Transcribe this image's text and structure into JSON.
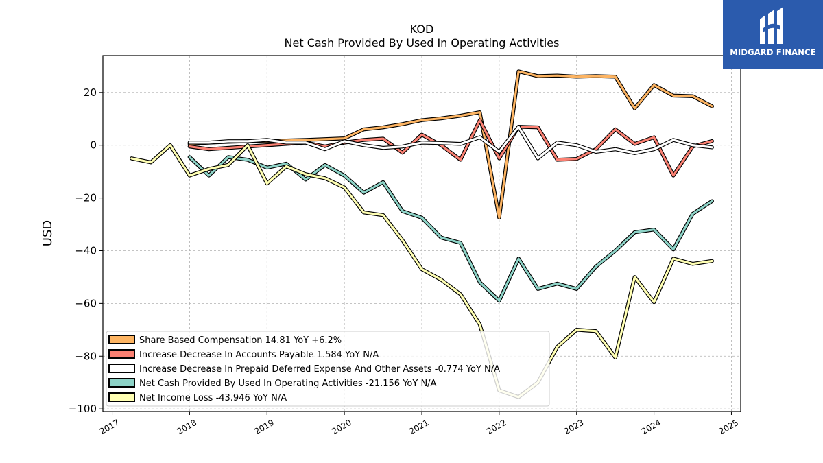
{
  "logo": {
    "text": "MIDGARD FINANCE",
    "icon": "midgard-m-logo-icon"
  },
  "chart_data": {
    "type": "line",
    "title": "KOD",
    "subtitle": "Net Cash Provided By Used In Operating Activities",
    "ylabel": "USD",
    "xlabel": "",
    "xlim": [
      2016.88,
      2025.12
    ],
    "ylim": [
      -101,
      34
    ],
    "yticks": [
      20,
      0,
      -20,
      -40,
      -60,
      -80,
      -100
    ],
    "ytick_labels": [
      "20",
      "0",
      "−20",
      "−40",
      "−60",
      "−80",
      "−100"
    ],
    "xticks": [
      2017,
      2018,
      2019,
      2020,
      2021,
      2022,
      2023,
      2024,
      2025
    ],
    "xtick_labels": [
      "2017",
      "2018",
      "2019",
      "2020",
      "2021",
      "2022",
      "2023",
      "2024",
      "2025"
    ],
    "grid": true,
    "legend_position": "lower-left",
    "series": [
      {
        "name": "Share Based Compensation",
        "legend": "Share Based Compensation  14.81 YoY +6.2%",
        "color": "#fdb462",
        "x": [
          2018.0,
          2018.25,
          2018.5,
          2018.75,
          2019.0,
          2019.25,
          2019.5,
          2019.75,
          2020.0,
          2020.25,
          2020.5,
          2020.75,
          2021.0,
          2021.25,
          2021.5,
          2021.75,
          2022.0,
          2022.25,
          2022.5,
          2022.75,
          2023.0,
          2023.25,
          2023.5,
          2023.75,
          2024.0,
          2024.25,
          2024.5,
          2024.75
        ],
        "values": [
          0.5,
          1.0,
          1.3,
          1.5,
          1.6,
          1.8,
          2.0,
          2.3,
          2.6,
          6.0,
          6.8,
          8.0,
          9.5,
          10.2,
          11.2,
          12.5,
          -27.5,
          28.0,
          26.2,
          26.4,
          26.0,
          26.2,
          26.0,
          14.0,
          22.8,
          18.8,
          18.6,
          14.8
        ]
      },
      {
        "name": "Increase Decrease In Accounts Payable",
        "legend": "Increase Decrease In Accounts Payable  1.584 YoY N/A",
        "color": "#fb8072",
        "x": [
          2018.0,
          2018.25,
          2018.5,
          2018.75,
          2019.0,
          2019.25,
          2019.5,
          2019.75,
          2020.0,
          2020.25,
          2020.5,
          2020.75,
          2021.0,
          2021.25,
          2021.5,
          2021.75,
          2022.0,
          2022.25,
          2022.5,
          2022.75,
          2023.0,
          2023.25,
          2023.5,
          2023.75,
          2024.0,
          2024.25,
          2024.5,
          2024.75
        ],
        "values": [
          -0.5,
          -1.5,
          -1.0,
          -0.5,
          0.0,
          0.5,
          1.0,
          -0.5,
          1.0,
          2.0,
          2.5,
          -2.8,
          4.0,
          0.0,
          -5.5,
          9.5,
          -5.0,
          7.0,
          6.8,
          -5.5,
          -5.2,
          -1.5,
          6.0,
          0.5,
          3.0,
          -11.5,
          -0.5,
          1.6
        ]
      },
      {
        "name": "Increase Decrease In Prepaid Deferred Expense And Other Assets",
        "legend": "Increase Decrease In Prepaid Deferred Expense And Other Assets  -0.774 YoY N/A",
        "color": "#ffffff",
        "x": [
          2018.0,
          2018.25,
          2018.5,
          2018.75,
          2019.0,
          2019.25,
          2019.5,
          2019.75,
          2020.0,
          2020.25,
          2020.5,
          2020.75,
          2021.0,
          2021.25,
          2021.5,
          2021.75,
          2022.0,
          2022.25,
          2022.5,
          2022.75,
          2023.0,
          2023.25,
          2023.5,
          2023.75,
          2024.0,
          2024.25,
          2024.5,
          2024.75
        ],
        "values": [
          1.0,
          1.0,
          1.5,
          1.5,
          2.0,
          1.0,
          1.0,
          -1.5,
          1.5,
          0.0,
          -1.0,
          -0.5,
          1.0,
          0.8,
          0.5,
          3.0,
          -2.5,
          7.0,
          -5.0,
          1.0,
          0.0,
          -2.5,
          -1.5,
          -3.0,
          -1.5,
          2.0,
          0.0,
          -0.8
        ]
      },
      {
        "name": "Net Cash Provided By Used In Operating Activities",
        "legend": "Net Cash Provided By Used In Operating Activities  -21.156 YoY N/A",
        "color": "#8dd3c7",
        "x": [
          2018.0,
          2018.25,
          2018.5,
          2018.75,
          2019.0,
          2019.25,
          2019.5,
          2019.75,
          2020.0,
          2020.25,
          2020.5,
          2020.75,
          2021.0,
          2021.25,
          2021.5,
          2021.75,
          2022.0,
          2022.25,
          2022.5,
          2022.75,
          2023.0,
          2023.25,
          2023.5,
          2023.75,
          2024.0,
          2024.25,
          2024.5,
          2024.75
        ],
        "values": [
          -4.5,
          -11.5,
          -4.5,
          -5.5,
          -8.5,
          -7.0,
          -13.0,
          -7.5,
          -11.5,
          -18.0,
          -14.0,
          -25.0,
          -27.5,
          -35.0,
          -37.0,
          -52.0,
          -59.0,
          -43.0,
          -54.5,
          -52.5,
          -54.5,
          -46.0,
          -40.0,
          -33.0,
          -32.0,
          -39.5,
          -26.0,
          -21.2
        ]
      },
      {
        "name": "Net Income Loss",
        "legend": "Net Income Loss  -43.946 YoY N/A",
        "color": "#ffffb3",
        "x": [
          2017.25,
          2017.5,
          2017.75,
          2018.0,
          2018.25,
          2018.5,
          2018.75,
          2019.0,
          2019.25,
          2019.5,
          2019.75,
          2020.0,
          2020.25,
          2020.5,
          2020.75,
          2021.0,
          2021.25,
          2021.5,
          2021.75,
          2022.0,
          2022.25,
          2022.5,
          2022.75,
          2023.0,
          2023.25,
          2023.5,
          2023.75,
          2024.0,
          2024.25,
          2024.5,
          2024.75
        ],
        "values": [
          -5.0,
          -6.5,
          0.0,
          -11.5,
          -9.0,
          -7.5,
          0.0,
          -14.5,
          -8.0,
          -11.0,
          -12.5,
          -16.0,
          -25.5,
          -26.5,
          -36.0,
          -47.0,
          -51.0,
          -56.5,
          -68.0,
          -93.0,
          -95.5,
          -90.0,
          -76.5,
          -70.0,
          -70.5,
          -80.5,
          -50.0,
          -59.5,
          -43.0,
          -45.0,
          -43.9
        ]
      }
    ]
  }
}
